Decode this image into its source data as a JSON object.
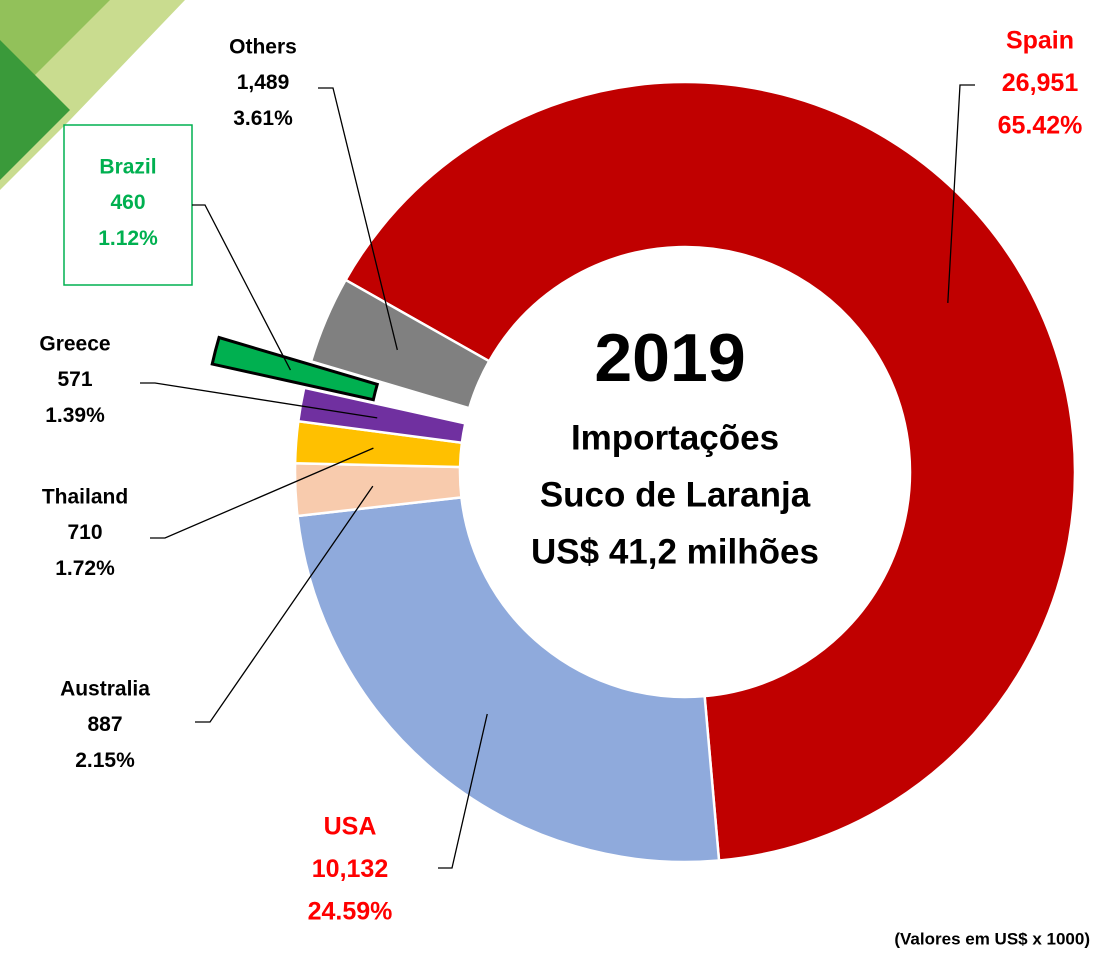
{
  "chart_data": {
    "type": "donut",
    "center_texts": [
      "2019",
      "Importações",
      "Suco de Laranja",
      "US$ 41,2 milhões"
    ],
    "footnote": "(Valores em US$ x 1000)",
    "categories": [
      "Spain",
      "USA",
      "Australia",
      "Thailand",
      "Greece",
      "Brazil",
      "Others"
    ],
    "values": [
      26951,
      10132,
      887,
      710,
      571,
      460,
      1489
    ],
    "value_labels": [
      "26,951",
      "10,132",
      "887",
      "710",
      "571",
      "460",
      "1,489"
    ],
    "percent_labels": [
      "65.42%",
      "24.59%",
      "2.15%",
      "1.72%",
      "1.39%",
      "1.12%",
      "3.61%"
    ],
    "colors": [
      "#c00000",
      "#8faadc",
      "#f8cbad",
      "#ffc000",
      "#7030a0",
      "#00b050",
      "#808080"
    ],
    "label_colors": [
      "#ff0000",
      "#ff0000",
      "#000000",
      "#000000",
      "#000000",
      "#00b050",
      "#000000"
    ],
    "exploded": [
      "Brazil"
    ]
  }
}
